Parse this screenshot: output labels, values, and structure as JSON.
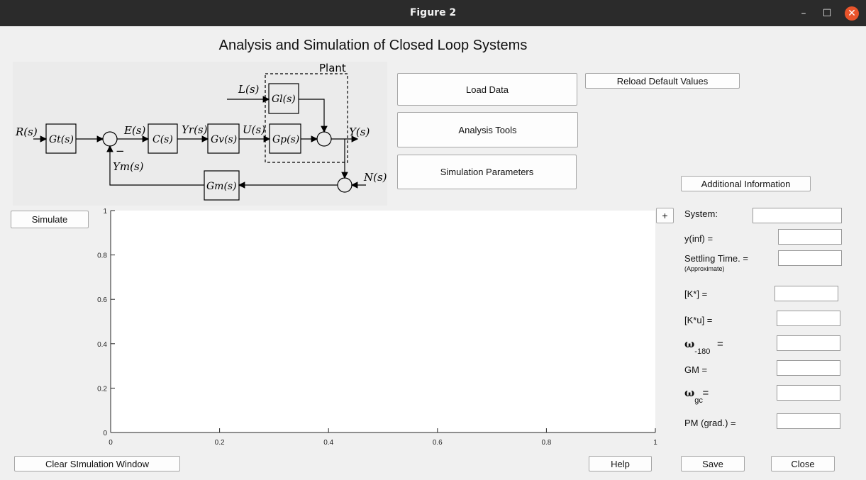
{
  "window": {
    "title": "Figure 2"
  },
  "page_title": "Analysis and Simulation of Closed Loop Systems",
  "diagram": {
    "plant": "Plant",
    "R": "R(s)",
    "Gt": "Gt(s)",
    "E": "E(s)",
    "C": "C(s)",
    "Yr": "Yr(s)",
    "Gv": "Gv(s)",
    "U": "U(s)",
    "Gp": "Gp(s)",
    "L": "L(s)",
    "Gl": "Gl(s)",
    "Y": "Y(s)",
    "N": "N(s)",
    "Gm": "Gm(s)",
    "Ym": "Ym(s)",
    "minus": "−"
  },
  "buttons": {
    "load_data": "Load Data",
    "reload_defaults": "Reload Default Values",
    "analysis_tools": "Analysis Tools",
    "simulation_parameters": "Simulation Parameters",
    "additional_info": "Additional Information",
    "simulate": "Simulate",
    "plus": "+",
    "clear": "Clear SImulation Window",
    "help": "Help",
    "save": "Save",
    "close": "Close"
  },
  "fields": {
    "system": {
      "label": "System:",
      "value": ""
    },
    "yinf": {
      "label": "y(inf) =",
      "value": ""
    },
    "settling": {
      "label": "Settling Time. =",
      "note": "(Approximate)",
      "value": ""
    },
    "kstar": {
      "label": "[K*] =",
      "value": ""
    },
    "kstaru": {
      "label": "[K*u] =",
      "value": ""
    },
    "w180": {
      "symbol": "ω",
      "sub": "-180",
      "eq": "=",
      "value": ""
    },
    "gm": {
      "label": "GM =",
      "value": ""
    },
    "wgc": {
      "symbol": "ω",
      "sub": "gc",
      "eq": "=",
      "value": ""
    },
    "pm": {
      "label": "PM (grad.)  =",
      "value": ""
    }
  },
  "chart_data": {
    "type": "line",
    "series": [],
    "xlim": [
      0,
      1
    ],
    "ylim": [
      0,
      1
    ],
    "xticks": [
      "0",
      "0.2",
      "0.4",
      "0.6",
      "0.8",
      "1"
    ],
    "yticks": [
      "0",
      "0.2",
      "0.4",
      "0.6",
      "0.8",
      "1"
    ],
    "grid": false
  }
}
